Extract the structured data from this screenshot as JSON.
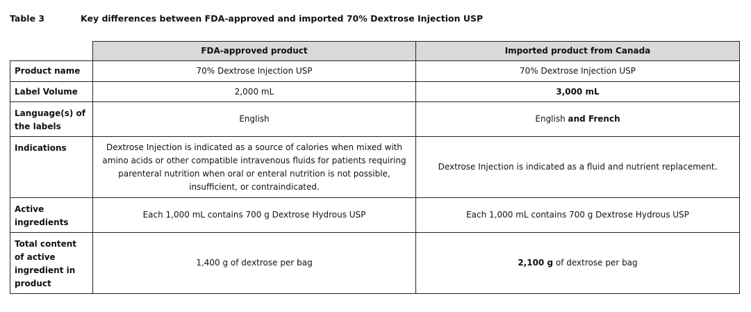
{
  "caption": {
    "label": "Table 3",
    "title": "Key differences between FDA-approved and imported 70% Dextrose Injection USP"
  },
  "columns": [
    "",
    "FDA-approved product",
    "Imported product from Canada"
  ],
  "rows": [
    {
      "header": "Product name",
      "fda": [
        {
          "t": "70% Dextrose Injection USP",
          "b": false
        }
      ],
      "imported": [
        {
          "t": "70% Dextrose Injection USP",
          "b": false
        }
      ]
    },
    {
      "header": "Label Volume",
      "fda": [
        {
          "t": "2,000 mL",
          "b": false
        }
      ],
      "imported": [
        {
          "t": "3,000 mL",
          "b": true
        }
      ]
    },
    {
      "header": "Language(s) of the labels",
      "fda": [
        {
          "t": "English",
          "b": false
        }
      ],
      "imported": [
        {
          "t": "English ",
          "b": false
        },
        {
          "t": "and French",
          "b": true
        }
      ]
    },
    {
      "header": "Indications",
      "fda": [
        {
          "t": "Dextrose Injection is indicated as a source of calories when mixed with amino acids or other compatible intravenous fluids for patients requiring parenteral nutrition when oral or enteral nutrition is not possible, insufficient, or contraindicated.",
          "b": false
        }
      ],
      "imported": [
        {
          "t": "Dextrose Injection is indicated as a fluid and nutrient replacement.",
          "b": false
        }
      ]
    },
    {
      "header": "Active ingredients",
      "fda": [
        {
          "t": "Each 1,000 mL contains 700 g Dextrose Hydrous USP",
          "b": false
        }
      ],
      "imported": [
        {
          "t": "Each 1,000 mL contains 700 g Dextrose Hydrous USP",
          "b": false
        }
      ]
    },
    {
      "header": "Total content of active ingredient in product",
      "fda": [
        {
          "t": "1,400 g of dextrose per bag",
          "b": false
        }
      ],
      "imported": [
        {
          "t": "2,100 g",
          "b": true
        },
        {
          "t": " of dextrose per bag",
          "b": false
        }
      ]
    }
  ]
}
